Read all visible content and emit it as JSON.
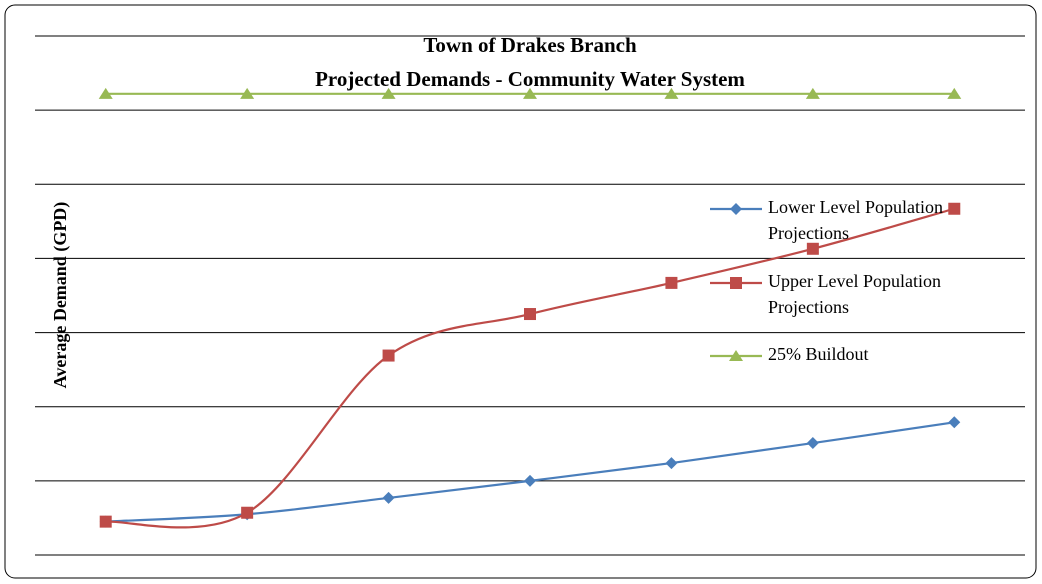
{
  "chart_data": {
    "type": "line",
    "title": [
      "Town of Drakes Branch",
      "Projected Demands - Community Water System"
    ],
    "y_label": "Average Demand (GPD)",
    "categories": [
      null,
      null,
      null,
      null,
      null,
      null,
      null
    ],
    "series": [
      {
        "name": "Lower Level Population Projections",
        "color": "#4a7ebb",
        "marker": "diamond",
        "values": [
          0.45,
          0.55,
          0.77,
          1.0,
          1.24,
          1.51,
          1.79
        ]
      },
      {
        "name": "Upper Level Population Projections",
        "color": "#be4b48",
        "marker": "square",
        "values": [
          0.45,
          0.57,
          2.69,
          3.25,
          3.67,
          4.13,
          4.67
        ]
      },
      {
        "name": "25% Buildout",
        "color": "#98b954",
        "marker": "triangle",
        "values": [
          6.22,
          6.22,
          6.22,
          6.22,
          6.22,
          6.22,
          6.22
        ]
      }
    ],
    "ylim": [
      0,
      7
    ],
    "yticks": [
      0,
      1,
      2,
      3,
      4,
      5,
      6,
      7
    ],
    "grid": true,
    "smooth": true,
    "legend": "right"
  }
}
